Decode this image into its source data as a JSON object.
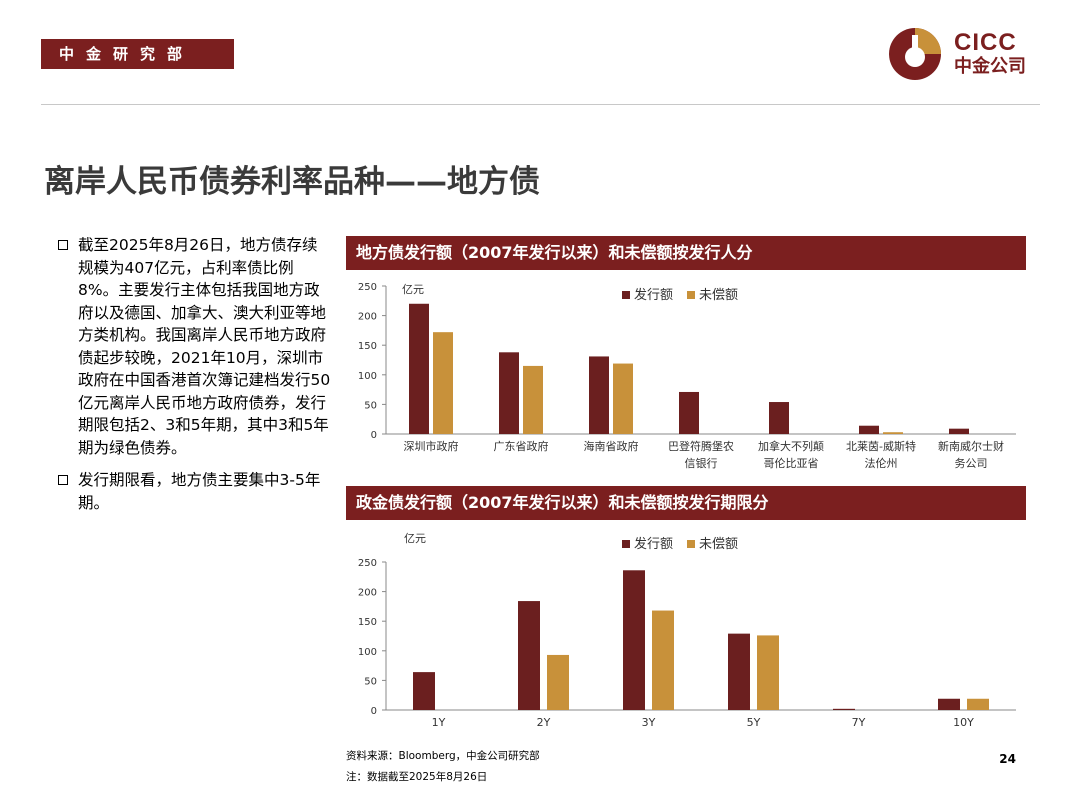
{
  "header": {
    "brand_tag": "中金研究部",
    "logo_en": "CICC",
    "logo_cn": "中金公司",
    "colors": {
      "brand": "#7b1f1f",
      "gold": "#c8913a"
    }
  },
  "title": "离岸人民币债券利率品种——地方债",
  "bullets": [
    "截至2025年8月26日，地方债存续规模为407亿元，占利率债比例8%。主要发行主体包括我国地方政府以及德国、加拿大、澳大利亚等地方类机构。我国离岸人民币地方政府债起步较晚，2021年10月，深圳市政府在中国香港首次簿记建档发行50亿元离岸人民币地方政府债券，发行期限包括2、3和5年期，其中3和5年期为绿色债券。",
    "发行期限看，地方债主要集中3-5年期。"
  ],
  "chart_data": [
    {
      "type": "bar",
      "title": "地方债发行额（2007年发行以来）和未偿额按发行人分",
      "unit": "亿元",
      "categories": [
        "深圳市政府",
        "广东省政府",
        "海南省政府",
        "巴登符腾堡农信银行",
        "加拿大不列颠哥伦比亚省",
        "北莱茵-威斯特法伦州",
        "新南威尔士财务公司"
      ],
      "category_lines": [
        [
          "深圳市政府"
        ],
        [
          "广东省政府"
        ],
        [
          "海南省政府"
        ],
        [
          "巴登符腾堡农",
          "信银行"
        ],
        [
          "加拿大不列颠",
          "哥伦比亚省"
        ],
        [
          "北莱茵-威斯特",
          "法伦州"
        ],
        [
          "新南威尔士财",
          "务公司"
        ]
      ],
      "series": [
        {
          "name": "发行额",
          "color": "#6b1f1f",
          "values": [
            220,
            138,
            131,
            71,
            54,
            14,
            9
          ]
        },
        {
          "name": "未偿额",
          "color": "#c8913a",
          "values": [
            172,
            115,
            119,
            0,
            0,
            3,
            0
          ]
        }
      ],
      "ylim": [
        0,
        250
      ],
      "yticks": [
        0,
        50,
        100,
        150,
        200,
        250
      ],
      "legend": "top-center"
    },
    {
      "type": "bar",
      "title": "政金债发行额（2007年发行以来）和未偿额按发行期限分",
      "unit": "亿元",
      "categories": [
        "1Y",
        "2Y",
        "3Y",
        "5Y",
        "7Y",
        "10Y"
      ],
      "category_lines": [
        [
          "1Y"
        ],
        [
          "2Y"
        ],
        [
          "3Y"
        ],
        [
          "5Y"
        ],
        [
          "7Y"
        ],
        [
          "10Y"
        ]
      ],
      "series": [
        {
          "name": "发行额",
          "color": "#6b1f1f",
          "values": [
            64,
            184,
            236,
            129,
            2,
            19
          ]
        },
        {
          "name": "未偿额",
          "color": "#c8913a",
          "values": [
            0,
            93,
            168,
            126,
            0,
            19
          ]
        }
      ],
      "ylim": [
        0,
        250
      ],
      "yticks": [
        0,
        50,
        100,
        150,
        200,
        250
      ],
      "legend": "top-center"
    }
  ],
  "footer": {
    "source": "资料来源：Bloomberg，中金公司研究部",
    "note": "注：数据截至2025年8月26日",
    "page_number": "24"
  }
}
